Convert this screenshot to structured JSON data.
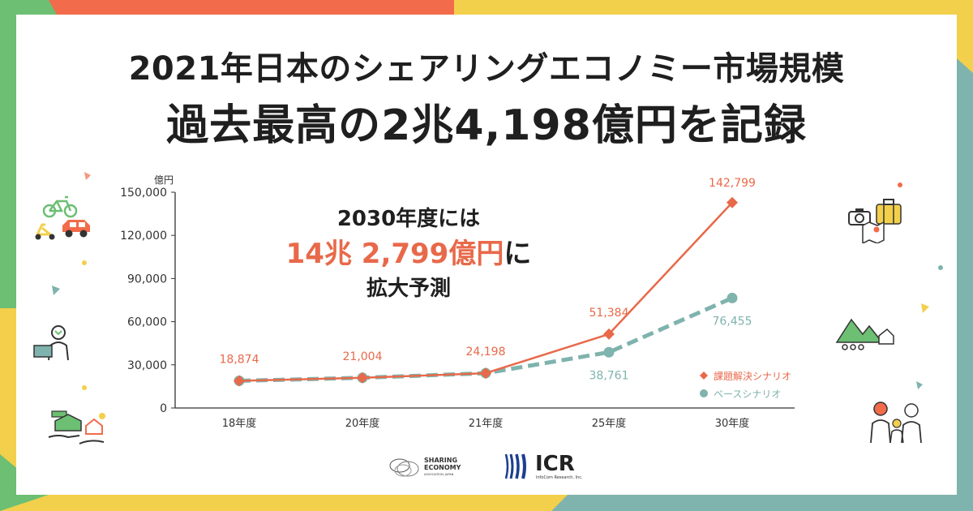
{
  "headline": {
    "line1": "2021年日本のシェアリングエコノミー市場規模",
    "line2": "過去最高の2兆4,198億円を記録"
  },
  "callout": {
    "line1": "2030年度には",
    "highlight": "14兆 2,799億円",
    "suffix": "に",
    "line3": "拡大予測"
  },
  "colors": {
    "accent_red": "#e8694a",
    "accent_teal": "#7fb3ad",
    "frame_green": "#6cbf73",
    "frame_yellow": "#f2d04b",
    "frame_orange": "#f26b4a",
    "frame_teal": "#7fb3ad"
  },
  "chart_data": {
    "type": "line",
    "ylabel": "億円",
    "ylim": [
      0,
      150000
    ],
    "yticks": [
      "150,000",
      "120,000",
      "90,000",
      "60,000",
      "30,000",
      "0"
    ],
    "ytick_values": [
      150000,
      120000,
      90000,
      60000,
      30000,
      0
    ],
    "categories": [
      "18年度",
      "20年度",
      "21年度",
      "25年度",
      "30年度"
    ],
    "legend_position": "bottom-right",
    "grid": false,
    "series": [
      {
        "name": "課題解決シナリオ",
        "values": [
          18874,
          21004,
          24198,
          51384,
          142799
        ],
        "labels": [
          "18,874",
          "21,004",
          "24,198",
          "51,384",
          "142,799"
        ],
        "color": "#e8694a",
        "marker": "diamond",
        "line": "solid"
      },
      {
        "name": "ベースシナリオ",
        "values": [
          18874,
          21004,
          24198,
          38761,
          76455
        ],
        "labels": [
          "",
          "",
          "",
          "38,761",
          "76,455"
        ],
        "color": "#7fb3ad",
        "marker": "circle",
        "line": "dashed"
      }
    ]
  },
  "logos": {
    "sharing_economy_line1": "SHARING",
    "sharing_economy_line2": "ECONOMY",
    "sharing_economy_line3": "ASSOCIATION, JAPAN",
    "icr_main": "ICR",
    "icr_sub": "InfoCom Research, Inc."
  },
  "icons": [
    "bicycle-icon",
    "scooter-icon",
    "car-icon",
    "person-laptop-icon",
    "house-hand-icon",
    "camera-icon",
    "suitcase-icon",
    "map-icon",
    "mountain-house-icon",
    "family-icon"
  ]
}
